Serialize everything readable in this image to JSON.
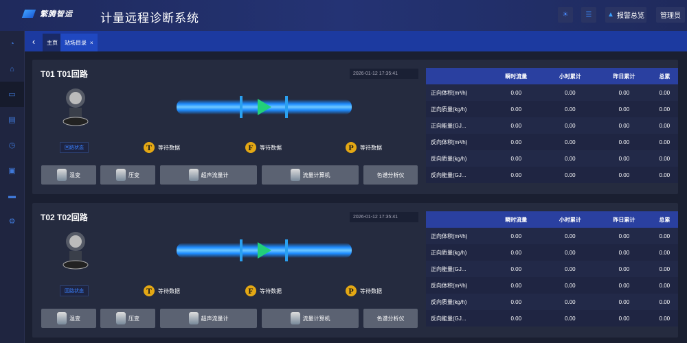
{
  "header": {
    "logo_text": "繁腾智运",
    "title": "计量远程诊断系统",
    "alarm_label": "报警总览",
    "user_label": "管理员"
  },
  "tabs": [
    {
      "label": "主页"
    },
    {
      "label": "站场目录",
      "close": "×"
    }
  ],
  "sidebar": {
    "icons": [
      "dashboard-icon",
      "home-icon",
      "monitor-icon",
      "document-icon",
      "clock-icon",
      "save-icon",
      "toolbox-icon",
      "settings-icon"
    ]
  },
  "table_headers": [
    "",
    "瞬时流量",
    "小时累计",
    "昨日累计",
    "总累"
  ],
  "colors": {
    "accent": "#1c3aa0",
    "indicator": "#e4a814"
  },
  "loops": [
    {
      "title": "T01 T01回路",
      "timestamp": "2026-01-12 17:35:41",
      "status_label": "回路状态",
      "indicators": [
        {
          "letter": "T",
          "text": "等待数据"
        },
        {
          "letter": "F",
          "text": "等待数据"
        },
        {
          "letter": "P",
          "text": "等待数据"
        }
      ],
      "devices": [
        "温变",
        "压变",
        "超声流量计",
        "流量计算机",
        "色谱分析仪"
      ],
      "rows": [
        [
          "正向体积(m³/h)",
          "0.00",
          "0.00",
          "0.00",
          "0.00"
        ],
        [
          "正向质量(kg/h)",
          "0.00",
          "0.00",
          "0.00",
          "0.00"
        ],
        [
          "正向能量(GJ...",
          "0.00",
          "0.00",
          "0.00",
          "0.00"
        ],
        [
          "反向体积(m³/h)",
          "0.00",
          "0.00",
          "0.00",
          "0.00"
        ],
        [
          "反向质量(kg/h)",
          "0.00",
          "0.00",
          "0.00",
          "0.00"
        ],
        [
          "反向能量(GJ...",
          "0.00",
          "0.00",
          "0.00",
          "0.00"
        ]
      ]
    },
    {
      "title": "T02 T02回路",
      "timestamp": "2026-01-12 17:35:41",
      "status_label": "回路状态",
      "indicators": [
        {
          "letter": "T",
          "text": "等待数据"
        },
        {
          "letter": "F",
          "text": "等待数据"
        },
        {
          "letter": "P",
          "text": "等待数据"
        }
      ],
      "devices": [
        "温变",
        "压变",
        "超声流量计",
        "流量计算机",
        "色谱分析仪"
      ],
      "rows": [
        [
          "正向体积(m³/h)",
          "0.00",
          "0.00",
          "0.00",
          "0.00"
        ],
        [
          "正向质量(kg/h)",
          "0.00",
          "0.00",
          "0.00",
          "0.00"
        ],
        [
          "正向能量(GJ...",
          "0.00",
          "0.00",
          "0.00",
          "0.00"
        ],
        [
          "反向体积(m³/h)",
          "0.00",
          "0.00",
          "0.00",
          "0.00"
        ],
        [
          "反向质量(kg/h)",
          "0.00",
          "0.00",
          "0.00",
          "0.00"
        ],
        [
          "反向能量(GJ...",
          "0.00",
          "0.00",
          "0.00",
          "0.00"
        ]
      ]
    }
  ]
}
